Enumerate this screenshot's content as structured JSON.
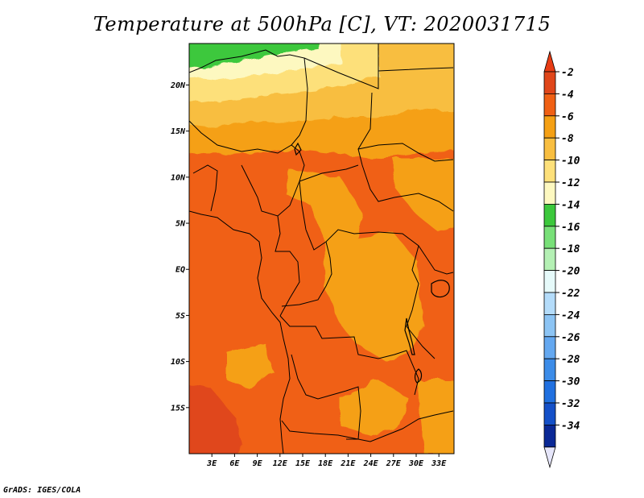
{
  "title": "Temperature at 500hPa [C], VT: 2020031715",
  "credit": "GrADS: IGES/COLA",
  "chart_data": {
    "type": "heatmap",
    "title": "Temperature at 500hPa [C], VT: 2020031715",
    "xlabel": "",
    "ylabel": "",
    "xlim": [
      0,
      35
    ],
    "ylim": [
      -20,
      24.5
    ],
    "x_ticks": [
      {
        "value": 3,
        "label": "3E"
      },
      {
        "value": 6,
        "label": "6E"
      },
      {
        "value": 9,
        "label": "9E"
      },
      {
        "value": 12,
        "label": "12E"
      },
      {
        "value": 15,
        "label": "15E"
      },
      {
        "value": 18,
        "label": "18E"
      },
      {
        "value": 21,
        "label": "21E"
      },
      {
        "value": 24,
        "label": "24E"
      },
      {
        "value": 27,
        "label": "27E"
      },
      {
        "value": 30,
        "label": "30E"
      },
      {
        "value": 33,
        "label": "33E"
      }
    ],
    "y_ticks": [
      {
        "value": 20,
        "label": "20N"
      },
      {
        "value": 15,
        "label": "15N"
      },
      {
        "value": 10,
        "label": "10N"
      },
      {
        "value": 5,
        "label": "5N"
      },
      {
        "value": 0,
        "label": "EQ"
      },
      {
        "value": -5,
        "label": "5S"
      },
      {
        "value": -10,
        "label": "10S"
      },
      {
        "value": -15,
        "label": "15S"
      }
    ],
    "colorbar": {
      "orientation": "vertical",
      "levels": [
        {
          "label": "-2",
          "color": "#e0461a"
        },
        {
          "label": "-4",
          "color": "#f06014"
        },
        {
          "label": "-6",
          "color": "#f5a014"
        },
        {
          "label": "-8",
          "color": "#f8be40"
        },
        {
          "label": "-10",
          "color": "#fde07a"
        },
        {
          "label": "-12",
          "color": "#fdf8c0"
        },
        {
          "label": "-14",
          "color": "#3cc83c"
        },
        {
          "label": "-16",
          "color": "#78e078"
        },
        {
          "label": "-18",
          "color": "#b4f0b4"
        },
        {
          "label": "-20",
          "color": "#e6fafa"
        },
        {
          "label": "-22",
          "color": "#b4dcfa"
        },
        {
          "label": "-24",
          "color": "#8cc4f4"
        },
        {
          "label": "-26",
          "color": "#64a8f0"
        },
        {
          "label": "-28",
          "color": "#3c8ce8"
        },
        {
          "label": "-30",
          "color": "#2070e0"
        },
        {
          "label": "-32",
          "color": "#1450c8"
        },
        {
          "label": "-34",
          "color": "#0a2896"
        }
      ],
      "over_color": "#e83c14",
      "under_color": "#e6e6fa"
    },
    "field_regions": [
      {
        "level": "-14",
        "description": "northern edge strip, roughly 0-17E at 22-24.5N"
      },
      {
        "level": "-12",
        "description": "band along 20-22N west of 25E"
      },
      {
        "level": "-10",
        "description": "band along 18-21N"
      },
      {
        "level": "-8",
        "description": "band along 15-19N"
      },
      {
        "level": "-6",
        "description": "north-central and eastern areas, large blobs in central/east Africa"
      },
      {
        "level": "-4",
        "description": "most of the domain south of 13N"
      },
      {
        "level": "-2",
        "description": "small area at far southwest, around 0-3E, 14-20S"
      }
    ],
    "grid": false,
    "legend": "right"
  }
}
